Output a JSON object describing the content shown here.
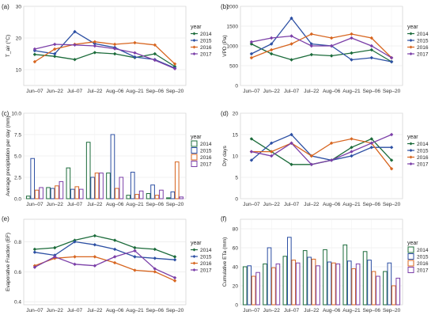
{
  "colors": {
    "2014": "#1b6b3a",
    "2015": "#2c4fa3",
    "2016": "#d7651f",
    "2017": "#7b3fa8"
  },
  "chart_data": [
    {
      "panel": "(a)",
      "type": "line",
      "categories": [
        "Jun–07",
        "Jun–22",
        "Jul–07",
        "Jul–22",
        "Aug–06",
        "Aug–21",
        "Sep–06",
        "Sep–20"
      ],
      "ylabel": "T_air (°C)",
      "ylim": [
        5,
        30
      ],
      "yticks": [
        10,
        20,
        30
      ],
      "legend": {
        "title": "year",
        "position": "right"
      },
      "series": [
        {
          "name": "2014",
          "values": [
            14.8,
            14.2,
            13.2,
            15.4,
            15.0,
            13.8,
            15.0,
            11.0
          ]
        },
        {
          "name": "2015",
          "values": [
            16.0,
            15.0,
            22.0,
            18.2,
            17.0,
            14.0,
            13.2,
            10.5
          ]
        },
        {
          "name": "2016",
          "values": [
            12.5,
            16.5,
            18.0,
            18.8,
            18.0,
            18.5,
            17.8,
            11.8
          ]
        },
        {
          "name": "2017",
          "values": [
            16.5,
            18.0,
            17.8,
            17.5,
            16.6,
            15.3,
            13.0,
            10.3
          ]
        }
      ]
    },
    {
      "panel": "(b)",
      "type": "line",
      "categories": [
        "Jun–07",
        "Jun–22",
        "Jul–07",
        "Jul–22",
        "Aug–06",
        "Aug–21",
        "Sep–06",
        "Sep–20"
      ],
      "ylabel": "VPD (Pa)",
      "ylim": [
        0,
        2000
      ],
      "yticks": [
        0,
        500,
        1000,
        1500,
        2000
      ],
      "legend": {
        "title": "year",
        "position": "right"
      },
      "series": [
        {
          "name": "2014",
          "values": [
            1050,
            800,
            650,
            780,
            750,
            820,
            900,
            600
          ]
        },
        {
          "name": "2015",
          "values": [
            800,
            1050,
            1700,
            1050,
            1000,
            650,
            700,
            600
          ]
        },
        {
          "name": "2016",
          "values": [
            700,
            900,
            1050,
            1300,
            1200,
            1300,
            1200,
            700
          ]
        },
        {
          "name": "2017",
          "values": [
            1100,
            1200,
            1250,
            1000,
            1000,
            1200,
            1000,
            700
          ]
        }
      ]
    },
    {
      "panel": "(c)",
      "type": "bar",
      "categories": [
        "Jun–07",
        "Jun–22",
        "Jul–07",
        "Jul–22",
        "Aug–06",
        "Aug–21",
        "Sep–06",
        "Sep–20"
      ],
      "ylabel": "Average precipitation per day (mm)",
      "ylim": [
        0,
        10
      ],
      "yticks": [
        0.0,
        2.5,
        5.0,
        7.5,
        10.0
      ],
      "legend": {
        "title": "year",
        "position": "right"
      },
      "series": [
        {
          "name": "2014",
          "values": [
            0.3,
            1.3,
            3.6,
            6.6,
            3.0,
            0.4,
            0.6,
            0.1
          ]
        },
        {
          "name": "2015",
          "values": [
            4.7,
            1.2,
            1.1,
            2.5,
            7.5,
            3.1,
            1.6,
            0.8
          ]
        },
        {
          "name": "2016",
          "values": [
            1.0,
            1.5,
            1.4,
            3.0,
            1.2,
            0.5,
            0.4,
            4.3
          ]
        },
        {
          "name": "2017",
          "values": [
            1.3,
            2.0,
            1.1,
            3.0,
            2.5,
            0.9,
            1.0,
            0.2
          ]
        }
      ]
    },
    {
      "panel": "(d)",
      "type": "line",
      "categories": [
        "Jun–07",
        "Jun–22",
        "Jul–07",
        "Jul–22",
        "Aug–06",
        "Aug–21",
        "Sep–06",
        "Sep–20"
      ],
      "ylabel": "Dry days",
      "ylim": [
        0,
        20
      ],
      "yticks": [
        0,
        5,
        10,
        15,
        20
      ],
      "legend": {
        "title": "year",
        "position": "right"
      },
      "series": [
        {
          "name": "2014",
          "values": [
            14,
            11,
            8,
            8,
            9,
            12,
            14,
            9
          ]
        },
        {
          "name": "2015",
          "values": [
            9,
            13,
            15,
            10,
            9,
            10,
            12,
            12
          ]
        },
        {
          "name": "2016",
          "values": [
            11,
            11,
            13,
            10,
            13,
            14,
            13,
            7
          ]
        },
        {
          "name": "2017",
          "values": [
            11,
            10,
            13,
            8,
            9,
            11,
            13,
            15
          ]
        }
      ]
    },
    {
      "panel": "(e)",
      "type": "line",
      "categories": [
        "Jun–07",
        "Jun–22",
        "Jul–07",
        "Jul–22",
        "Aug–06",
        "Aug–21",
        "Sep–06",
        "Sep–20"
      ],
      "ylabel": "Evaporative Fraction (EF)",
      "ylim": [
        0.38,
        0.95
      ],
      "yticks": [
        0.4,
        0.6,
        0.8
      ],
      "legend": {
        "title": "year",
        "position": "right"
      },
      "series": [
        {
          "name": "2014",
          "values": [
            0.75,
            0.76,
            0.81,
            0.84,
            0.81,
            0.76,
            0.75,
            0.7
          ]
        },
        {
          "name": "2015",
          "values": [
            0.73,
            0.71,
            0.8,
            0.78,
            0.75,
            0.7,
            0.69,
            0.68
          ]
        },
        {
          "name": "2016",
          "values": [
            0.64,
            0.69,
            0.7,
            0.7,
            0.66,
            0.61,
            0.6,
            0.54
          ]
        },
        {
          "name": "2017",
          "values": [
            0.63,
            0.7,
            0.65,
            0.64,
            0.7,
            0.74,
            0.62,
            0.56
          ]
        }
      ]
    },
    {
      "panel": "(f)",
      "type": "bar",
      "categories": [
        "Jun–07",
        "Jun–22",
        "Jul–07",
        "Jul–22",
        "Aug–06",
        "Aug–21",
        "Sep–06",
        "Sep–20"
      ],
      "ylabel": "Cumulative ETa (mm)",
      "ylim": [
        0,
        90
      ],
      "yticks": [
        0,
        20,
        40,
        60,
        80
      ],
      "legend": {
        "title": "year",
        "position": "right"
      },
      "series": [
        {
          "name": "2014",
          "values": [
            40,
            43,
            51,
            57,
            58,
            63,
            56,
            35
          ]
        },
        {
          "name": "2015",
          "values": [
            41,
            60,
            71,
            50,
            45,
            46,
            47,
            44
          ]
        },
        {
          "name": "2016",
          "values": [
            30,
            39,
            47,
            48,
            44,
            38,
            35,
            20
          ]
        },
        {
          "name": "2017",
          "values": [
            34,
            43,
            44,
            41,
            43,
            43,
            30,
            28
          ]
        }
      ]
    }
  ]
}
